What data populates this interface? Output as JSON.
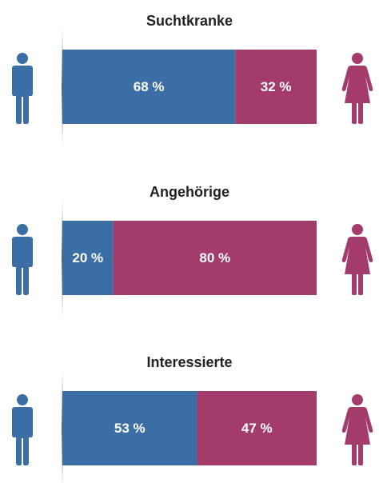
{
  "chart_data": [
    {
      "type": "bar",
      "title": "Suchtkranke",
      "xlim": [
        0,
        100
      ],
      "series": [
        {
          "color": "#3c6ea6",
          "values": [
            68
          ],
          "value_labels": [
            "68 %"
          ]
        },
        {
          "color": "#a33c6a",
          "values": [
            32
          ],
          "value_labels": [
            "32 %"
          ]
        }
      ]
    },
    {
      "type": "bar",
      "title": "Angehörige",
      "xlim": [
        0,
        100
      ],
      "series": [
        {
          "color": "#3c6ea6",
          "values": [
            20
          ],
          "value_labels": [
            "20 %"
          ]
        },
        {
          "color": "#a33c6a",
          "values": [
            80
          ],
          "value_labels": [
            "80 %"
          ]
        }
      ]
    },
    {
      "type": "bar",
      "title": "Interessierte",
      "xlim": [
        0,
        100
      ],
      "series": [
        {
          "color": "#3c6ea6",
          "values": [
            53
          ],
          "value_labels": [
            "53 %"
          ]
        },
        {
          "color": "#a33c6a",
          "values": [
            47
          ],
          "value_labels": [
            "47 %"
          ]
        }
      ]
    }
  ]
}
